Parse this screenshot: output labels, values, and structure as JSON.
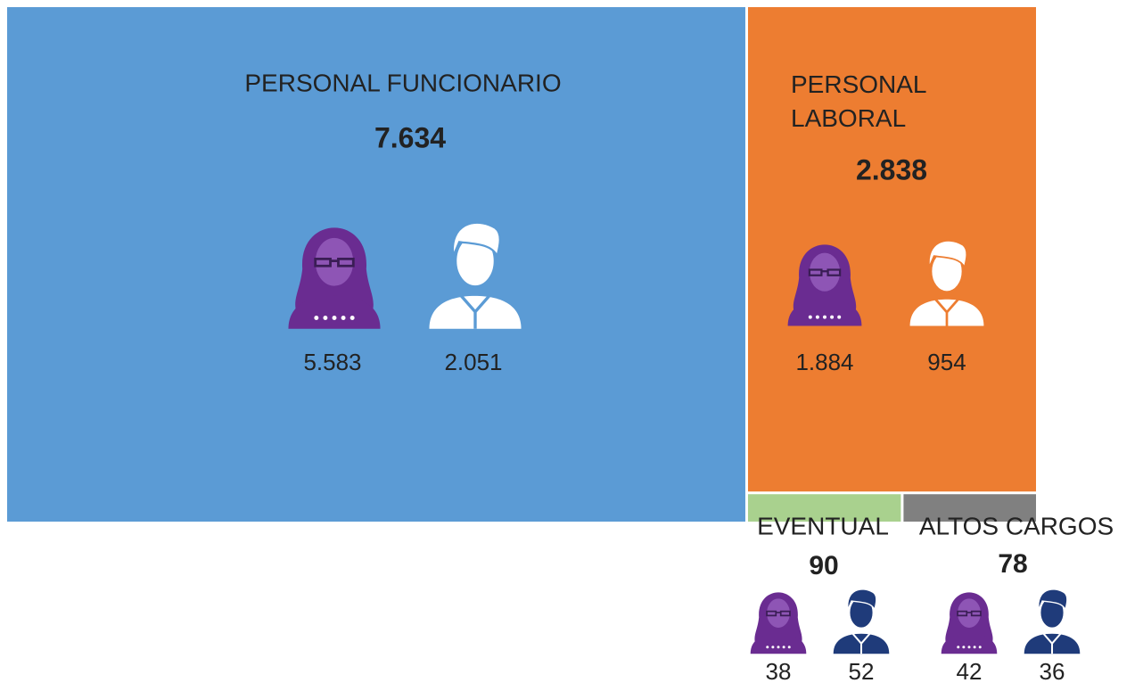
{
  "chart_data": {
    "type": "treemap",
    "categories": [
      "PERSONAL FUNCIONARIO",
      "PERSONAL LABORAL",
      "EVENTUAL",
      "ALTOS CARGOS"
    ],
    "values": [
      7634,
      2838,
      90,
      78
    ],
    "value_labels": [
      "7.634",
      "2.838",
      "90",
      "78"
    ],
    "colors": [
      "#5b9bd5",
      "#ed7d31",
      "#a9d18e",
      "#808080"
    ],
    "women": [
      5583,
      1884,
      38,
      42
    ],
    "women_labels": [
      "5.583",
      "1.884",
      "38",
      "42"
    ],
    "men": [
      2051,
      954,
      52,
      36
    ],
    "men_labels": [
      "2.051",
      "954",
      "52",
      "36"
    ]
  }
}
